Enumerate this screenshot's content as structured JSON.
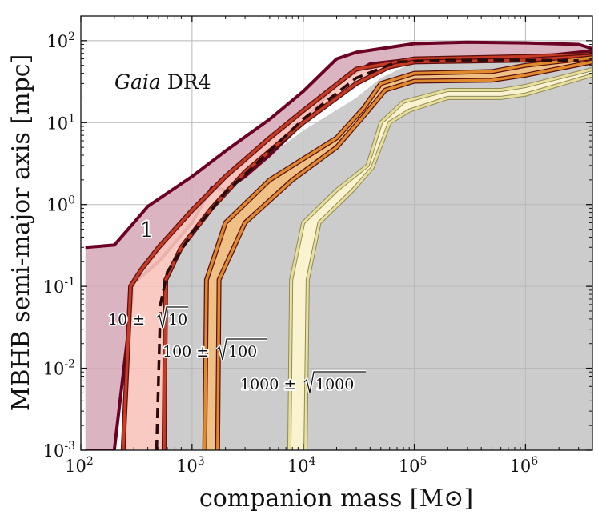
{
  "chart_data": {
    "type": "area",
    "title": "Gaia DR4",
    "title_italic": "Gaia",
    "title_rest": " DR4",
    "xlabel": "companion mass [M⊙]",
    "ylabel": "MBHB semi-major axis [mpc]",
    "xscale": "log",
    "yscale": "log",
    "xlim": [
      100,
      4000000
    ],
    "ylim": [
      0.001,
      200
    ],
    "grid": true,
    "x_ticks": [
      {
        "value": 100,
        "base": "10",
        "exp": "2"
      },
      {
        "value": 1000,
        "base": "10",
        "exp": "3"
      },
      {
        "value": 10000,
        "base": "10",
        "exp": "4"
      },
      {
        "value": 100000,
        "base": "10",
        "exp": "5"
      },
      {
        "value": 1000000,
        "base": "10",
        "exp": "6"
      }
    ],
    "y_ticks": [
      {
        "value": 0.001,
        "base": "10",
        "exp": "-3"
      },
      {
        "value": 0.01,
        "base": "10",
        "exp": "-2"
      },
      {
        "value": 0.1,
        "base": "10",
        "exp": "-1"
      },
      {
        "value": 1,
        "base": "10",
        "exp": "0"
      },
      {
        "value": 10,
        "base": "10",
        "exp": "1"
      },
      {
        "value": 100,
        "base": "10",
        "exp": "2"
      }
    ],
    "excluded_region": {
      "name": "excluded",
      "color": "#cccccc",
      "boundary": [
        [
          550,
          0.001
        ],
        [
          600,
          0.12
        ],
        [
          1000,
          0.5
        ],
        [
          2000,
          1.5
        ],
        [
          5000,
          4
        ],
        [
          10000,
          8
        ],
        [
          30000,
          20
        ],
        [
          50000,
          35
        ],
        [
          100000,
          55
        ],
        [
          500000,
          60
        ],
        [
          4000000,
          70
        ]
      ]
    },
    "bands": [
      {
        "name": "1",
        "label": "1",
        "fill": "#d5a7b6",
        "edge": "#6b0023",
        "upper": [
          [
            110,
            0.3
          ],
          [
            200,
            0.32
          ],
          [
            300,
            0.6
          ],
          [
            400,
            0.95
          ],
          [
            1000,
            2.2
          ],
          [
            2000,
            4.5
          ],
          [
            5000,
            11
          ],
          [
            10000,
            24
          ],
          [
            20000,
            60
          ],
          [
            30000,
            72
          ],
          [
            100000,
            92
          ],
          [
            300000,
            96
          ],
          [
            1000000,
            94
          ],
          [
            3000000,
            90
          ],
          [
            4000000,
            80
          ]
        ],
        "lower": [
          [
            110,
            0.001
          ],
          [
            200,
            0.001
          ],
          [
            300,
            0.11
          ],
          [
            500,
            0.2
          ],
          [
            1000,
            0.6
          ],
          [
            1500,
            1.6
          ],
          [
            2000,
            1.5
          ],
          [
            3000,
            2.2
          ],
          [
            5000,
            4
          ],
          [
            10000,
            10
          ],
          [
            20000,
            30
          ],
          [
            40000,
            52
          ],
          [
            100000,
            60
          ],
          [
            1000000,
            62
          ],
          [
            4000000,
            75
          ]
        ]
      },
      {
        "name": "10 ± √10",
        "label_pre": "10 ± ",
        "label_rad": "10",
        "fill": "#f7c4bb",
        "edge": "#c73a24",
        "upper": [
          [
            240,
            0.001
          ],
          [
            280,
            0.1
          ],
          [
            350,
            0.16
          ],
          [
            500,
            0.3
          ],
          [
            1000,
            0.85
          ],
          [
            2000,
            2.2
          ],
          [
            5000,
            6.5
          ],
          [
            10000,
            14
          ],
          [
            30000,
            45
          ],
          [
            100000,
            60
          ],
          [
            1000000,
            64
          ],
          [
            4000000,
            68
          ]
        ],
        "lower": [
          [
            560,
            0.001
          ],
          [
            580,
            0.12
          ],
          [
            800,
            0.3
          ],
          [
            1500,
            0.9
          ],
          [
            3000,
            2.5
          ],
          [
            10000,
            10
          ],
          [
            30000,
            30
          ],
          [
            60000,
            48
          ],
          [
            100000,
            55
          ],
          [
            1000000,
            58
          ],
          [
            4000000,
            65
          ]
        ]
      },
      {
        "name": "100 ± √100",
        "label_pre": "100 ± ",
        "label_rad": "100",
        "fill": "#f4c07e",
        "edge": "#e08a2e",
        "upper": [
          [
            1300,
            0.001
          ],
          [
            1350,
            0.12
          ],
          [
            2000,
            0.6
          ],
          [
            5000,
            2
          ],
          [
            20000,
            6.5
          ],
          [
            35000,
            15
          ],
          [
            50000,
            30
          ],
          [
            100000,
            40
          ],
          [
            500000,
            42
          ],
          [
            1000000,
            50
          ],
          [
            4000000,
            62
          ]
        ],
        "lower": [
          [
            1700,
            0.001
          ],
          [
            1750,
            0.12
          ],
          [
            3000,
            0.6
          ],
          [
            8000,
            2
          ],
          [
            20000,
            5
          ],
          [
            35000,
            12
          ],
          [
            55000,
            25
          ],
          [
            100000,
            32
          ],
          [
            500000,
            33
          ],
          [
            1000000,
            38
          ],
          [
            4000000,
            55
          ]
        ]
      },
      {
        "name": "1000 ± √1000",
        "label_pre": "1000 ± ",
        "label_rad": "1000",
        "fill": "#fff7cf",
        "edge": "#e8e09a",
        "upper": [
          [
            7500,
            0.001
          ],
          [
            7800,
            0.12
          ],
          [
            10000,
            0.6
          ],
          [
            20000,
            1.5
          ],
          [
            38000,
            3
          ],
          [
            50000,
            10
          ],
          [
            80000,
            18
          ],
          [
            200000,
            25
          ],
          [
            600000,
            25
          ],
          [
            1000000,
            28
          ],
          [
            4000000,
            45
          ]
        ],
        "lower": [
          [
            10500,
            0.001
          ],
          [
            11000,
            0.12
          ],
          [
            14000,
            0.6
          ],
          [
            28000,
            1.5
          ],
          [
            42000,
            2.8
          ],
          [
            60000,
            10
          ],
          [
            90000,
            14
          ],
          [
            200000,
            20
          ],
          [
            600000,
            20
          ],
          [
            1000000,
            22
          ],
          [
            4000000,
            38
          ]
        ]
      }
    ],
    "median_line": {
      "name": "median",
      "color": "#2a0a0a",
      "style": "dashed",
      "points": [
        [
          480,
          0.001
        ],
        [
          520,
          0.06
        ],
        [
          600,
          0.15
        ],
        [
          1000,
          0.45
        ],
        [
          2000,
          1.4
        ],
        [
          5000,
          4.5
        ],
        [
          10000,
          11
        ],
        [
          30000,
          35
        ],
        [
          70000,
          55
        ],
        [
          200000,
          58
        ],
        [
          1000000,
          58
        ],
        [
          3000000,
          57
        ]
      ]
    }
  }
}
